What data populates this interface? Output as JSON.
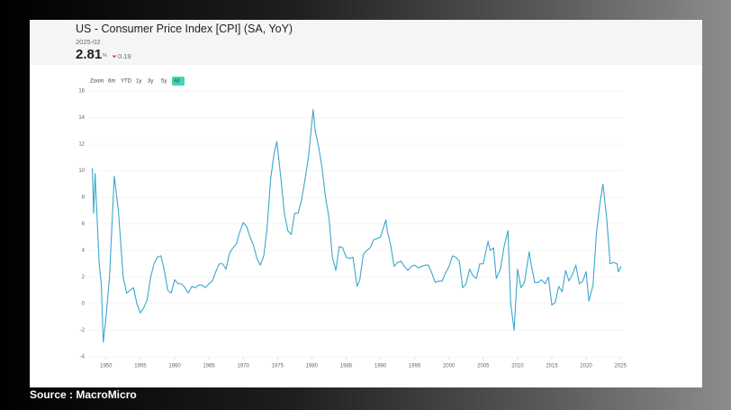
{
  "chart_data": {
    "type": "line",
    "title": "US - Consumer Price Index [CPI] (SA, YoY)",
    "latest_date": "2025-02",
    "latest_value": "2.81",
    "latest_unit": "%",
    "latest_change": "0.19",
    "zoom_label": "Zoom",
    "zoom_buttons": [
      "6m",
      "YTD",
      "1y",
      "3y",
      "5y",
      "All"
    ],
    "color": "#3ba7cc",
    "grid": true,
    "xlim": [
      1947.4,
      2025.5
    ],
    "xticks": [
      1950,
      1955,
      1960,
      1965,
      1970,
      1975,
      1980,
      1985,
      1990,
      1995,
      2000,
      2005,
      2010,
      2015,
      2020,
      2025
    ],
    "ylim": [
      -4,
      16
    ],
    "yticks": [
      -4,
      -2,
      0,
      2,
      4,
      6,
      8,
      10,
      12,
      14,
      16
    ],
    "x": [
      1948.0,
      1948.2,
      1948.4,
      1948.6,
      1949.0,
      1949.3,
      1949.6,
      1950.0,
      1950.5,
      1951.2,
      1951.8,
      1952.5,
      1953.0,
      1953.5,
      1954.0,
      1954.5,
      1955.0,
      1955.5,
      1956.0,
      1956.5,
      1957.0,
      1957.5,
      1958.0,
      1958.5,
      1959.0,
      1959.5,
      1960.0,
      1960.5,
      1961.0,
      1961.5,
      1962.0,
      1962.5,
      1963.0,
      1963.5,
      1964.0,
      1964.5,
      1965.0,
      1965.5,
      1966.0,
      1966.5,
      1967.0,
      1967.5,
      1968.0,
      1968.5,
      1969.0,
      1969.5,
      1970.0,
      1970.5,
      1971.0,
      1971.5,
      1972.0,
      1972.5,
      1973.0,
      1973.5,
      1974.0,
      1974.5,
      1974.9,
      1975.5,
      1976.0,
      1976.5,
      1977.0,
      1977.5,
      1978.0,
      1978.5,
      1979.0,
      1979.5,
      1980.2,
      1980.5,
      1981.0,
      1981.5,
      1982.0,
      1982.5,
      1983.0,
      1983.5,
      1984.0,
      1984.5,
      1985.0,
      1985.5,
      1986.0,
      1986.6,
      1987.0,
      1987.5,
      1988.0,
      1988.5,
      1989.0,
      1989.5,
      1990.0,
      1990.8,
      1991.0,
      1991.5,
      1992.0,
      1992.5,
      1993.0,
      1993.5,
      1994.0,
      1994.5,
      1995.0,
      1995.5,
      1996.0,
      1996.5,
      1997.0,
      1997.5,
      1998.0,
      1998.5,
      1999.0,
      1999.5,
      2000.0,
      2000.5,
      2001.0,
      2001.5,
      2002.0,
      2002.5,
      2003.0,
      2003.5,
      2004.0,
      2004.5,
      2005.0,
      2005.7,
      2006.0,
      2006.5,
      2006.9,
      2007.5,
      2008.0,
      2008.6,
      2009.0,
      2009.5,
      2010.0,
      2010.5,
      2011.0,
      2011.7,
      2012.0,
      2012.5,
      2013.0,
      2013.5,
      2014.0,
      2014.5,
      2015.0,
      2015.5,
      2016.0,
      2016.5,
      2017.0,
      2017.5,
      2018.0,
      2018.5,
      2019.0,
      2019.5,
      2020.0,
      2020.4,
      2021.0,
      2021.5,
      2022.0,
      2022.45,
      2023.0,
      2023.5,
      2024.0,
      2024.5,
      2024.7,
      2025.1
    ],
    "values": [
      10.2,
      6.8,
      9.8,
      7.5,
      3.0,
      1.5,
      -2.9,
      -1.0,
      2.0,
      9.6,
      7.0,
      2.0,
      0.8,
      1.0,
      1.2,
      0.0,
      -0.7,
      -0.3,
      0.3,
      2.0,
      3.0,
      3.5,
      3.6,
      2.5,
      1.0,
      0.8,
      1.8,
      1.5,
      1.5,
      1.2,
      0.8,
      1.3,
      1.2,
      1.4,
      1.4,
      1.2,
      1.5,
      1.7,
      2.4,
      3.0,
      3.0,
      2.6,
      3.8,
      4.2,
      4.5,
      5.4,
      6.1,
      5.8,
      5.0,
      4.4,
      3.4,
      2.9,
      3.6,
      5.8,
      9.4,
      11.3,
      12.2,
      9.4,
      6.8,
      5.5,
      5.2,
      6.8,
      6.8,
      7.8,
      9.3,
      11.0,
      14.6,
      13.0,
      11.8,
      10.2,
      8.0,
      6.5,
      3.5,
      2.5,
      4.3,
      4.2,
      3.5,
      3.4,
      3.5,
      1.3,
      1.8,
      3.7,
      4.0,
      4.2,
      4.8,
      4.9,
      5.0,
      6.3,
      5.5,
      4.4,
      2.8,
      3.1,
      3.2,
      2.8,
      2.5,
      2.8,
      2.9,
      2.7,
      2.8,
      2.9,
      2.9,
      2.3,
      1.6,
      1.7,
      1.7,
      2.3,
      2.8,
      3.6,
      3.5,
      3.2,
      1.2,
      1.5,
      2.6,
      2.1,
      1.9,
      3.0,
      3.0,
      4.7,
      4.0,
      4.2,
      1.9,
      2.6,
      4.2,
      5.5,
      0.0,
      -2.0,
      2.6,
      1.2,
      1.6,
      3.9,
      2.9,
      1.6,
      1.6,
      1.8,
      1.5,
      2.0,
      -0.1,
      0.1,
      1.3,
      0.9,
      2.5,
      1.7,
      2.2,
      2.9,
      1.5,
      1.7,
      2.4,
      0.2,
      1.4,
      5.3,
      7.5,
      9.0,
      6.4,
      3.0,
      3.1,
      3.0,
      2.4,
      2.81
    ]
  },
  "source": "Source : MacroMicro"
}
